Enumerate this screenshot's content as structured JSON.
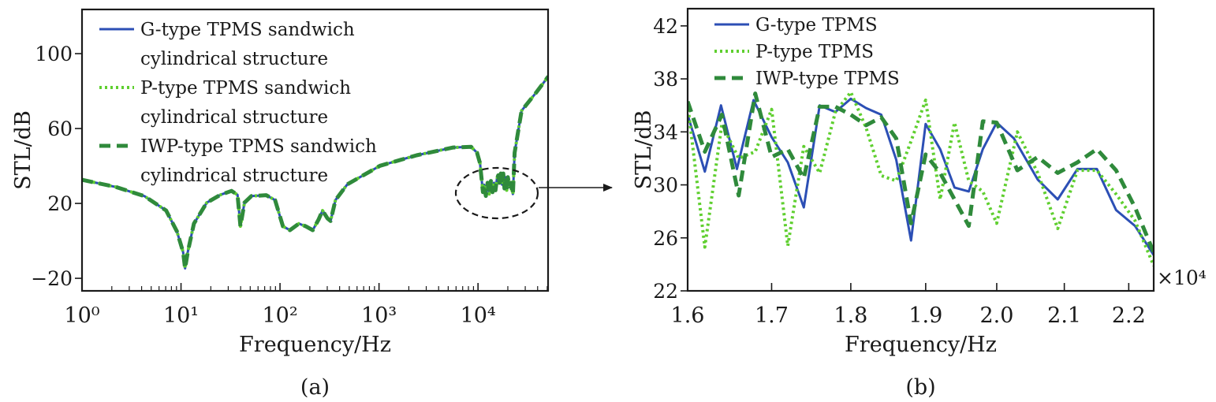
{
  "colors": {
    "g": "#2c4fb5",
    "p": "#5fcf2f",
    "iwp": "#2f8a3b",
    "axis": "#1a1a1a"
  },
  "chart_data": [
    {
      "type": "line",
      "panel_label": "(a)",
      "xlabel": "Frequency/Hz",
      "ylabel": "STL/dB",
      "xscale": "log",
      "xlim": [
        1,
        51000
      ],
      "ylim": [
        -26.7,
        123.6
      ],
      "xticks": [
        1,
        10,
        100,
        1000,
        10000
      ],
      "xtick_labels": [
        "10⁰",
        "10¹",
        "10²",
        "10³",
        "10⁴"
      ],
      "yticks": [
        -20,
        20,
        60,
        100
      ],
      "ytick_labels": [
        "−20",
        "20",
        "60",
        "100"
      ],
      "legend_position": "top-left",
      "annotation": "dashed ellipse around 1.1×10⁴–2.3×10⁴ Hz region with arrow to panel (b)",
      "legend": [
        {
          "key": "g",
          "lines": [
            "G-type TPMS sandwich",
            "cylindrical structure"
          ],
          "style": "solid"
        },
        {
          "key": "p",
          "lines": [
            "P-type TPMS sandwich",
            "cylindrical structure"
          ],
          "style": "dotted"
        },
        {
          "key": "iwp",
          "lines": [
            "IWP-type TPMS sandwich",
            "cylindrical structure"
          ],
          "style": "dashed"
        }
      ],
      "note": "All three series overlap in panel (a); shared curve below",
      "x": [
        1,
        2.19,
        4.27,
        7.08,
        9.1,
        10.5,
        11,
        11.7,
        13.5,
        18.2,
        25.1,
        32.4,
        37.2,
        39.8,
        43.7,
        51.3,
        72.4,
        89.1,
        107,
        126,
        155,
        182,
        214,
        245,
        269,
        302,
        324,
        363,
        479,
        1023,
        2399,
        5623,
        8511,
        9772,
        10470,
        11220,
        11500,
        12000,
        12500,
        13000,
        13500,
        14000,
        14500,
        15000,
        15500,
        16000,
        16500,
        17000,
        17500,
        18000,
        18500,
        19000,
        19500,
        20000,
        20500,
        21000,
        21500,
        22000,
        22500,
        23440,
        27540,
        38900,
        51290
      ],
      "y": [
        32.6,
        28.8,
        23.9,
        16.2,
        5,
        -6,
        -14.7,
        -6,
        9.2,
        20.4,
        24.6,
        26.7,
        24.6,
        7.8,
        20.4,
        23.9,
        24.4,
        21.8,
        7.8,
        5.7,
        9.2,
        7.8,
        5.7,
        11.3,
        16.2,
        12,
        10.6,
        21.8,
        30.2,
        40.1,
        45.7,
        49.9,
        50.2,
        47.1,
        41.5,
        26,
        30,
        24,
        31,
        25,
        32,
        26,
        31,
        27,
        33,
        35,
        31,
        36,
        30,
        36,
        28,
        34,
        27,
        34,
        31,
        29,
        31,
        27,
        25,
        47.1,
        69.5,
        79.4,
        87.8
      ]
    },
    {
      "type": "line",
      "panel_label": "(b)",
      "xlabel": "Frequency/Hz",
      "ylabel": "STL/dB",
      "xscale": "log",
      "x_multiplier": "×10⁴",
      "xlim": [
        1.6,
        2.24
      ],
      "ylim": [
        22,
        43.3
      ],
      "xticks": [
        1.6,
        1.7,
        1.8,
        1.9,
        2.0,
        2.1,
        2.2
      ],
      "xtick_labels": [
        "1.6",
        "1.7",
        "1.8",
        "1.9",
        "2.0",
        "2.1",
        "2.2"
      ],
      "yticks": [
        22,
        26,
        30,
        34,
        38,
        42
      ],
      "ytick_labels": [
        "22",
        "26",
        "30",
        "34",
        "38",
        "42"
      ],
      "legend_position": "top-left",
      "legend": [
        {
          "key": "g",
          "lines": [
            "G-type TPMS"
          ],
          "style": "solid"
        },
        {
          "key": "p",
          "lines": [
            "P-type TPMS"
          ],
          "style": "dotted"
        },
        {
          "key": "iwp",
          "lines": [
            "IWP-type TPMS"
          ],
          "style": "dashed"
        }
      ],
      "series": [
        {
          "name": "G-type TPMS",
          "key": "g",
          "x": [
            1.6,
            1.62,
            1.639,
            1.658,
            1.678,
            1.7,
            1.72,
            1.74,
            1.76,
            1.78,
            1.8,
            1.82,
            1.84,
            1.86,
            1.88,
            1.9,
            1.92,
            1.94,
            1.96,
            1.98,
            2.0,
            2.025,
            2.06,
            2.09,
            2.12,
            2.15,
            2.18,
            2.21,
            2.24
          ],
          "y": [
            35.3,
            31.0,
            36.0,
            31.2,
            36.4,
            33.6,
            31.7,
            28.3,
            36.0,
            35.5,
            36.5,
            35.8,
            35.3,
            31.9,
            25.8,
            34.6,
            32.7,
            29.8,
            29.5,
            32.7,
            34.7,
            33.5,
            30.4,
            28.9,
            31.2,
            31.2,
            28.1,
            26.9,
            24.7
          ]
        },
        {
          "name": "P-type TPMS",
          "key": "p",
          "x": [
            1.6,
            1.62,
            1.64,
            1.66,
            1.68,
            1.7,
            1.72,
            1.74,
            1.76,
            1.78,
            1.8,
            1.82,
            1.84,
            1.86,
            1.88,
            1.9,
            1.92,
            1.94,
            1.96,
            1.98,
            2.0,
            2.03,
            2.06,
            2.09,
            2.12,
            2.15,
            2.18,
            2.21,
            2.24
          ],
          "y": [
            36.1,
            25.3,
            34.6,
            32.0,
            32.5,
            35.7,
            25.4,
            32.9,
            30.9,
            35.5,
            37.0,
            34.3,
            30.7,
            30.3,
            33.3,
            36.4,
            28.9,
            34.7,
            30.3,
            29.5,
            27.1,
            34.0,
            30.9,
            26.7,
            31.1,
            31.1,
            29.3,
            27.3,
            23.9
          ]
        },
        {
          "name": "IWP-type TPMS",
          "key": "iwp",
          "x": [
            1.6,
            1.62,
            1.64,
            1.66,
            1.68,
            1.7,
            1.72,
            1.74,
            1.76,
            1.78,
            1.8,
            1.82,
            1.84,
            1.86,
            1.88,
            1.9,
            1.92,
            1.94,
            1.96,
            1.98,
            2.0,
            2.03,
            2.06,
            2.09,
            2.12,
            2.15,
            2.18,
            2.21,
            2.24
          ],
          "y": [
            36.3,
            32.5,
            35.3,
            29.2,
            36.9,
            32.1,
            32.7,
            30.5,
            35.9,
            35.9,
            35.3,
            34.5,
            35.1,
            33.5,
            27.1,
            32.3,
            30.9,
            28.9,
            26.9,
            34.8,
            34.7,
            31.1,
            32.1,
            30.9,
            31.7,
            32.7,
            31.1,
            28.3,
            24.9
          ]
        }
      ]
    }
  ]
}
